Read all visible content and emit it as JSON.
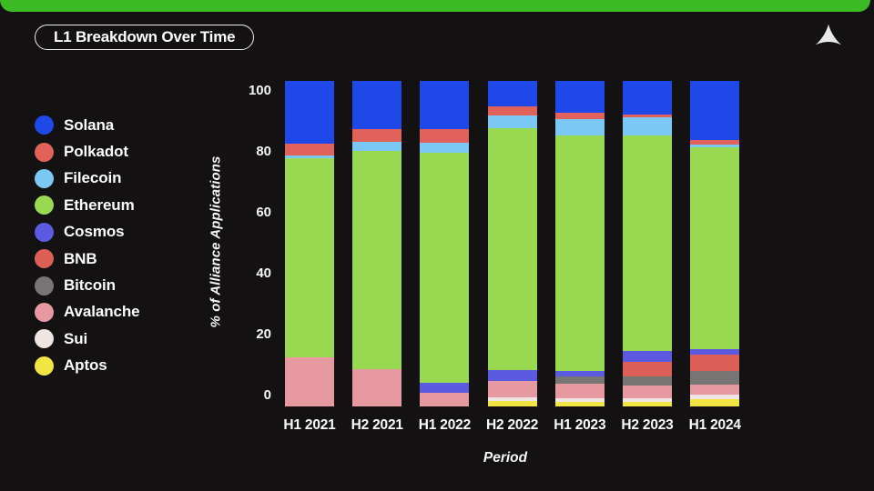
{
  "header": {
    "title": "L1 Breakdown Over Time"
  },
  "icons": {
    "logo": "alliance-triangle-logo-icon"
  },
  "colors": {
    "background": "#131111",
    "banner_green": "#3cba24",
    "text": "#ffffff"
  },
  "chart_data": {
    "type": "bar",
    "stacked": true,
    "title": "L1 Breakdown Over Time",
    "xlabel": "Period",
    "ylabel": "% of Alliance Applications",
    "ylim": [
      0,
      100
    ],
    "yticks": [
      100,
      80,
      60,
      40,
      20,
      0
    ],
    "grid": false,
    "legend_position": "left",
    "categories": [
      "H1 2021",
      "H2 2021",
      "H1 2022",
      "H2 2022",
      "H1 2023",
      "H2 2023",
      "H1 2024"
    ],
    "stack_order_bottom_to_top": [
      "Aptos",
      "Sui",
      "Avalanche",
      "Bitcoin",
      "BNB",
      "Cosmos",
      "Ethereum",
      "Filecoin",
      "Polkadot",
      "Solana"
    ],
    "series": [
      {
        "name": "Solana",
        "color": "#1e49e8",
        "values": [
          19.2,
          14.8,
          14.7,
          7.9,
          9.8,
          10.2,
          18.1
        ]
      },
      {
        "name": "Polkadot",
        "color": "#e1625a",
        "values": [
          3.8,
          3.9,
          4.2,
          2.8,
          1.9,
          0.9,
          1.4
        ]
      },
      {
        "name": "Filecoin",
        "color": "#7cc8f5",
        "values": [
          0.6,
          2.8,
          3.2,
          3.9,
          5.1,
          5.6,
          0.9
        ]
      },
      {
        "name": "Ethereum",
        "color": "#99d952",
        "values": [
          61.2,
          67.0,
          70.5,
          74.2,
          72.3,
          66.2,
          62.0
        ]
      },
      {
        "name": "Cosmos",
        "color": "#5b5ae0",
        "values": [
          0,
          0,
          3.3,
          3.3,
          1.6,
          3.3,
          1.7
        ]
      },
      {
        "name": "BNB",
        "color": "#dd6058",
        "values": [
          0,
          0,
          0,
          0,
          0,
          4.7,
          5.1
        ]
      },
      {
        "name": "Bitcoin",
        "color": "#787575",
        "values": [
          0,
          0,
          0,
          0,
          2.3,
          2.8,
          4.2
        ]
      },
      {
        "name": "Avalanche",
        "color": "#e699a1",
        "values": [
          15.2,
          11.5,
          4.1,
          5.2,
          4.5,
          3.9,
          3.1
        ]
      },
      {
        "name": "Sui",
        "color": "#efe6e4",
        "values": [
          0,
          0,
          0,
          0.9,
          1.0,
          0.9,
          1.4
        ]
      },
      {
        "name": "Aptos",
        "color": "#f0e542",
        "values": [
          0,
          0,
          0,
          1.8,
          1.5,
          1.5,
          2.1
        ]
      }
    ]
  }
}
